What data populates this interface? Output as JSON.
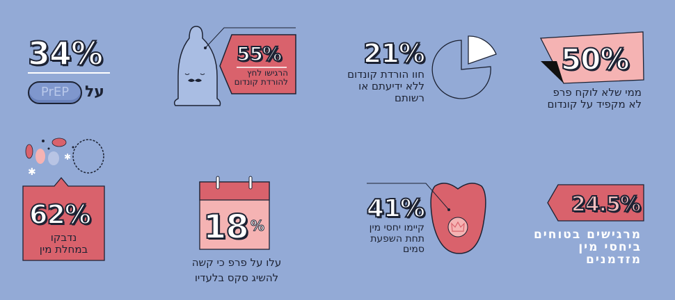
{
  "stats": [
    {
      "value": "34%",
      "label": "על",
      "badge": "PrEP"
    },
    {
      "value": "55%",
      "label_lines": [
        "הרגישו לחץ",
        "להורדת קונדום"
      ]
    },
    {
      "value": "21%",
      "label_lines": [
        "חוו הורדת קונדום",
        "ללא ידיעתם או",
        "רשותם"
      ]
    },
    {
      "value": "50%",
      "label_lines": [
        "ממי שלא לוקח פרפ",
        "לא מקפיד על קונדום"
      ]
    },
    {
      "value": "62%",
      "label_lines": [
        "נדבקו",
        "במחלת מין"
      ]
    },
    {
      "value": "18",
      "unit": "%",
      "label_lines": [
        "עלו על פרפ כי  קשה",
        "להשיג סקס בלעדיו"
      ]
    },
    {
      "value": "41%",
      "label_lines": [
        "קיימו יחסי מין",
        "תחת השפעת",
        "סמים"
      ]
    },
    {
      "value": "24.5%",
      "label_lines": [
        "מרגישים בטוחים",
        "ביחסי מין",
        "מזדמנים"
      ]
    }
  ],
  "colors": {
    "background": "#93aad6",
    "red": "#d9626c",
    "pink": "#f5b3b3",
    "outline": "#1c2233"
  }
}
